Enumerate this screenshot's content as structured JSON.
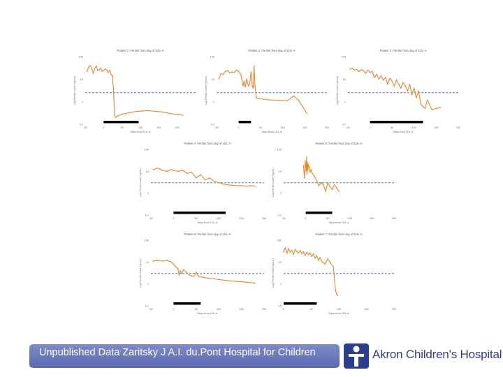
{
  "footer": {
    "note": "Unpublished Data Zaritsky J A.I. du.Pont Hospital for Children",
    "logo_text": "Akron Children's Hospital"
  },
  "colors": {
    "series": "#e08a2e",
    "threshold": "#4f7fc0",
    "treatment_bar": "#000000",
    "footer_bar": "#6c79bd",
    "logo": "#2c3e8f"
  },
  "chart_data": [
    {
      "type": "line",
      "log_y": true,
      "title": "Patient 1: Ferritin from day of LDL-A",
      "ylabel": "Log Ferritin Level (ng/mL)",
      "xlabel": "Days from LDL-A",
      "xlim": [
        -50,
        250
      ],
      "ylim": [
        0.1,
        100
      ],
      "xticks": [
        "-50",
        "0",
        "50",
        "100",
        "150",
        "200"
      ],
      "yticks": [
        "0.1",
        "1",
        "10",
        "100"
      ],
      "threshold": 2.5,
      "treatment": [
        0,
        95
      ],
      "series": [
        {
          "x": [
            -45,
            -40,
            -36,
            -32,
            -28,
            -24,
            -20,
            -16,
            -12,
            -8,
            -4,
            0,
            4,
            8,
            12,
            16,
            20,
            24,
            27,
            30,
            33,
            36,
            40,
            50,
            60,
            75,
            90,
            105,
            120,
            140,
            160,
            180,
            200,
            215
          ],
          "y": [
            22,
            35,
            40,
            28,
            18,
            30,
            38,
            24,
            26,
            30,
            22,
            25,
            28,
            26,
            20,
            24,
            16,
            14,
            3.0,
            0.24,
            0.2,
            0.22,
            0.24,
            0.28,
            0.3,
            0.34,
            0.37,
            0.39,
            0.4,
            0.38,
            0.35,
            0.3,
            0.27,
            0.25
          ]
        }
      ]
    },
    {
      "type": "line",
      "log_y": true,
      "title": "Patient 2: Ferritin from day of LDL-A",
      "ylabel": "Log Ferritin Level (ng/mL)",
      "xlabel": "Days from LDL-A",
      "xlim": [
        -50,
        200
      ],
      "ylim": [
        0.1,
        100
      ],
      "xticks": [
        "-50",
        "0",
        "50",
        "100",
        "150",
        "200"
      ],
      "yticks": [
        "0.1",
        "1",
        "10",
        "100"
      ],
      "threshold": 2.5,
      "treatment": [
        0,
        28
      ],
      "series": [
        {
          "x": [
            -45,
            -40,
            -35,
            -30,
            -25,
            -20,
            -15,
            -10,
            -5,
            0,
            5,
            10,
            12,
            15,
            18,
            22,
            25,
            28,
            31,
            33,
            35,
            37,
            40,
            45,
            55,
            70,
            90,
            110,
            125,
            135,
            145,
            155
          ],
          "y": [
            10,
            18,
            16,
            22,
            24,
            19,
            21,
            20,
            25,
            22,
            16,
            5,
            8,
            4.5,
            10,
            5,
            6,
            20,
            5,
            4,
            40,
            5,
            1.5,
            1.4,
            1.3,
            1.2,
            1.15,
            1.1,
            1.8,
            1.2,
            0.6,
            0.3
          ]
        }
      ]
    },
    {
      "type": "line",
      "log_y": true,
      "title": "Patient 3: Ferritin from day of LDL-A",
      "ylabel": "Log Ferritin Level (ng/mL)",
      "xlabel": "Days from LDL-A",
      "xlim": [
        -50,
        200
      ],
      "ylim": [
        0.1,
        100
      ],
      "xticks": [
        "-50",
        "0",
        "50",
        "100",
        "150",
        "200"
      ],
      "yticks": [
        "0.1",
        "1",
        "10",
        "100"
      ],
      "threshold": 2.5,
      "treatment": [
        0,
        120
      ],
      "series": [
        {
          "x": [
            -45,
            -40,
            -35,
            -30,
            -25,
            -20,
            -15,
            -10,
            -5,
            0,
            5,
            10,
            15,
            20,
            25,
            30,
            35,
            40,
            45,
            50,
            55,
            60,
            65,
            70,
            75,
            80,
            85,
            90,
            95,
            100,
            105,
            110,
            115,
            120,
            125,
            130,
            140,
            150,
            160
          ],
          "y": [
            28,
            30,
            25,
            27,
            22,
            26,
            24,
            18,
            25,
            20,
            22,
            12,
            16,
            10,
            14,
            9,
            12,
            6,
            11,
            8,
            5,
            9,
            6,
            4,
            7,
            5,
            3,
            6,
            2,
            4,
            1.5,
            3,
            0.8,
            0.6,
            0.5,
            1.2,
            0.45,
            0.5,
            0.55
          ]
        }
      ]
    },
    {
      "type": "line",
      "log_y": true,
      "title": "Patient 4: Ferritin from day of LDL-A",
      "ylabel": "Log Ferritin Level (ng/mL)",
      "xlabel": "Days from LDL-A",
      "xlim": [
        -50,
        200
      ],
      "ylim": [
        0.1,
        100
      ],
      "xticks": [
        "-50",
        "0",
        "50",
        "100",
        "150",
        "200"
      ],
      "yticks": [
        "0.1",
        "1",
        "10",
        "100"
      ],
      "threshold": 3,
      "treatment": [
        0,
        115
      ],
      "series": [
        {
          "x": [
            -45,
            -35,
            -25,
            -15,
            -5,
            0,
            10,
            20,
            30,
            40,
            50,
            60,
            70,
            80,
            90,
            100,
            110,
            120,
            130,
            140,
            150,
            160,
            170,
            180
          ],
          "y": [
            12,
            14,
            11,
            10,
            12,
            11,
            10,
            11,
            8,
            9,
            5,
            7,
            4,
            5,
            3.5,
            3,
            2.6,
            2.4,
            2.3,
            2.2,
            2.2,
            2.1,
            2.2,
            2.1
          ]
        }
      ]
    },
    {
      "type": "line",
      "log_y": true,
      "title": "Patient 5: Ferritin from day of LDL-A",
      "ylabel": "Log Ferritin Level (ng/mL)",
      "xlabel": "Days from LDL-A",
      "xlim": [
        -50,
        200
      ],
      "ylim": [
        0.1,
        100
      ],
      "xticks": [
        "-50",
        "0",
        "50",
        "100",
        "150",
        "200"
      ],
      "yticks": [
        "0.1",
        "1",
        "10",
        "100"
      ],
      "threshold": 3,
      "treatment": [
        0,
        60
      ],
      "series": [
        {
          "x": [
            -5,
            -3,
            -1,
            1,
            2,
            3,
            4,
            5,
            6,
            8,
            10,
            12,
            15,
            20,
            25,
            30,
            35,
            40,
            45,
            50,
            55,
            60,
            65,
            70,
            75
          ],
          "y": [
            18,
            5,
            30,
            10,
            45,
            8,
            25,
            12,
            20,
            15,
            9,
            12,
            8,
            6,
            3.5,
            2.2,
            3,
            2.5,
            1.2,
            3,
            2,
            1.5,
            2.4,
            1.8,
            1.2
          ]
        }
      ]
    },
    {
      "type": "line",
      "log_y": true,
      "title": "Patient 6: Ferritin from day of LDL-A",
      "ylabel": "Log Ferritin Level (ng/mL)",
      "xlabel": "Days from LDL-A",
      "xlim": [
        -50,
        200
      ],
      "ylim": [
        0.1,
        100
      ],
      "xticks": [
        "-50",
        "0",
        "50",
        "100",
        "150",
        "200"
      ],
      "yticks": [
        "0.1",
        "1",
        "10",
        "100"
      ],
      "threshold": 3,
      "treatment": [
        0,
        60
      ],
      "series": [
        {
          "x": [
            -45,
            -35,
            -25,
            -15,
            -5,
            0,
            5,
            10,
            12,
            15,
            18,
            22,
            28,
            35,
            40,
            45,
            50,
            55,
            65,
            80,
            100,
            120,
            140,
            160,
            180
          ],
          "y": [
            11,
            12,
            11,
            12,
            10,
            8,
            6,
            5,
            2.5,
            4,
            3,
            4.5,
            3.5,
            2.5,
            2.3,
            2.2,
            3.5,
            2.2,
            2.0,
            1.8,
            1.6,
            1.4,
            1.3,
            1.2,
            1.1
          ]
        }
      ]
    },
    {
      "type": "line",
      "log_y": true,
      "title": "Patient 7: Ferritin from day of LDL-A",
      "ylabel": "Log Ferritin Level (ng/mL)",
      "xlabel": "Days from LDL-A",
      "xlim": [
        0,
        200
      ],
      "ylim": [
        0.1,
        100
      ],
      "xticks": [
        "0",
        "50",
        "100",
        "150",
        "200"
      ],
      "yticks": [
        "0.1",
        "1",
        "10",
        "100"
      ],
      "threshold": 3,
      "treatment": [
        0,
        60
      ],
      "series": [
        {
          "x": [
            0,
            3,
            6,
            9,
            12,
            15,
            18,
            21,
            24,
            27,
            30,
            33,
            36,
            39,
            42,
            45,
            48,
            51,
            54,
            57,
            60,
            63,
            66,
            70,
            75,
            80,
            85,
            90,
            94,
            96,
            98
          ],
          "y": [
            30,
            45,
            25,
            40,
            28,
            35,
            22,
            38,
            30,
            26,
            33,
            24,
            30,
            20,
            28,
            22,
            26,
            18,
            24,
            15,
            20,
            12,
            16,
            10,
            8,
            14,
            9,
            6,
            0.5,
            0.35,
            0.3
          ]
        }
      ]
    }
  ]
}
